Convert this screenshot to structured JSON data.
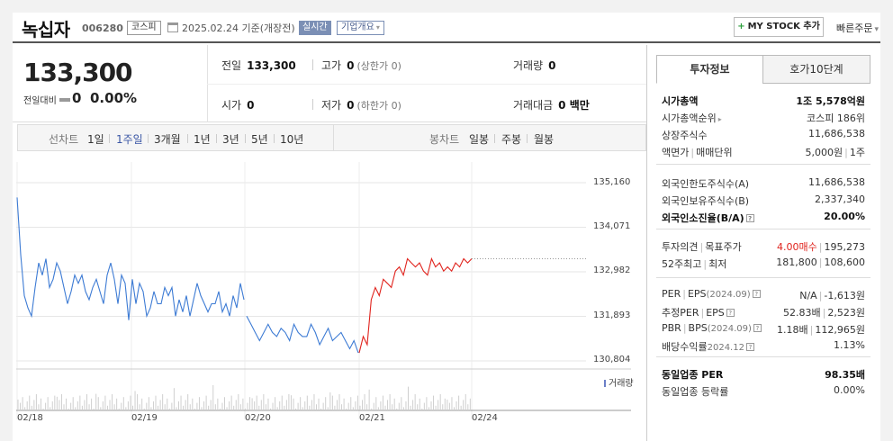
{
  "header": {
    "name": "녹십자",
    "code": "006280",
    "market": "코스피",
    "date": "2025.02.24 기준(개장전)",
    "realtime": "실시간",
    "company_info": "기업개요",
    "mystock": "MY STOCK 추가",
    "quick_order": "빠른주문"
  },
  "price": {
    "current": "133,300",
    "diff_label": "전일대비",
    "diff": "0",
    "diff_pct": "0.00%"
  },
  "quote": {
    "prev_label": "전일",
    "prev": "133,300",
    "high_label": "고가",
    "high": "0",
    "high_sub": "(상한가 0)",
    "volume_label": "거래량",
    "volume": "0",
    "open_label": "시가",
    "open": "0",
    "low_label": "저가",
    "low": "0",
    "low_sub": "(하한가 0)",
    "amount_label": "거래대금",
    "amount": "0 백만"
  },
  "chart_tabs": {
    "line_label": "선차트",
    "periods": [
      "1일",
      "1주일",
      "3개월",
      "1년",
      "3년",
      "5년",
      "10년"
    ],
    "active_period": "1주일",
    "candle_label": "봉차트",
    "candles": [
      "일봉",
      "주봉",
      "월봉"
    ]
  },
  "chart_data": {
    "type": "line",
    "y_ticks": [
      "135,160",
      "134,071",
      "132,982",
      "131,893",
      "130,804"
    ],
    "ylim": [
      130804,
      135160
    ],
    "x_ticks": [
      "02/18",
      "02/19",
      "02/20",
      "02/21",
      "02/24"
    ],
    "volume_label": "거래량",
    "colors": {
      "down": "#3d7bd4",
      "up": "#e0231d"
    },
    "segments": [
      {
        "name": "02/18-02/20",
        "color": "down",
        "values": [
          134800,
          133400,
          132400,
          132100,
          131900,
          132600,
          133200,
          132900,
          133300,
          132600,
          132800,
          133200,
          133000,
          132600,
          132200,
          132500,
          132900,
          132700,
          132900,
          132500,
          132300,
          132600,
          132800,
          132500,
          132200,
          132900,
          133200,
          132800,
          132200,
          132900,
          132700,
          131800,
          132800,
          132200,
          132700,
          132500,
          131900,
          132100,
          132500,
          132200,
          132200,
          132600,
          132400,
          132600,
          131900,
          132300,
          132000,
          132400,
          131900,
          132300,
          132700,
          132400,
          132200,
          132000,
          132200,
          132200,
          132500,
          132000,
          132200,
          131900,
          132400,
          132100,
          132700,
          132300
        ]
      },
      {
        "name": "02/20-02/21",
        "color": "down",
        "values": [
          131900,
          131700,
          131500,
          131300,
          131500,
          131700,
          131500,
          131400,
          131600,
          131500,
          131300,
          131700,
          131500,
          131400,
          131400,
          131700,
          131500,
          131200,
          131400,
          131600,
          131300,
          131400,
          131500,
          131300,
          131100,
          131300,
          131000
        ]
      },
      {
        "name": "02/21",
        "color": "up",
        "values": [
          131000,
          131400,
          131200,
          132300,
          132600,
          132400,
          132800,
          132700,
          132600,
          133000,
          133100,
          132900,
          133300,
          133200,
          133100,
          133200,
          133000,
          132900,
          133300,
          133100,
          133200,
          133000,
          133100,
          133000,
          133200,
          133100,
          133300,
          133200,
          133300
        ]
      }
    ],
    "last": 133300
  },
  "right_panel": {
    "tabs": [
      "투자정보",
      "호가10단계"
    ],
    "group1": [
      {
        "label": "시가총액",
        "value": "1조 5,578억원",
        "bold": true
      },
      {
        "label": "시가총액순위",
        "value": "코스피 186위",
        "arrow": true
      },
      {
        "label": "상장주식수",
        "value": "11,686,538"
      },
      {
        "label": "액면가",
        "label2": "매매단위",
        "value": "5,000원",
        "value2": "1주"
      }
    ],
    "group2": [
      {
        "label": "외국인한도주식수(A)",
        "value": "11,686,538"
      },
      {
        "label": "외국인보유주식수(B)",
        "value": "2,337,340"
      },
      {
        "label": "외국인소진율(B/A)",
        "value": "20.00%",
        "bold": true,
        "help": true
      }
    ],
    "group3": [
      {
        "label": "투자의견",
        "label2": "목표주가",
        "value": "4.00매수",
        "value2": "195,273"
      },
      {
        "label": "52주최고",
        "label2": "최저",
        "value": "181,800",
        "value2": "108,600"
      }
    ],
    "group4": [
      {
        "label": "PER",
        "label2": "EPS",
        "sub": "(2024.09)",
        "value": "N/A",
        "value2": "-1,613원"
      },
      {
        "label": "추정PER",
        "label2": "EPS",
        "value": "52.83배",
        "value2": "2,523원"
      },
      {
        "label": "PBR",
        "label2": "BPS",
        "sub": "(2024.09)",
        "value": "1.18배",
        "value2": "112,965원"
      },
      {
        "label": "배당수익률",
        "sub": "2024.12",
        "value": "1.13%"
      }
    ],
    "group5": [
      {
        "label": "동일업종 PER",
        "value": "98.35배",
        "bold": true
      },
      {
        "label": "동일업종 등락률",
        "value": "0.00%"
      }
    ]
  }
}
